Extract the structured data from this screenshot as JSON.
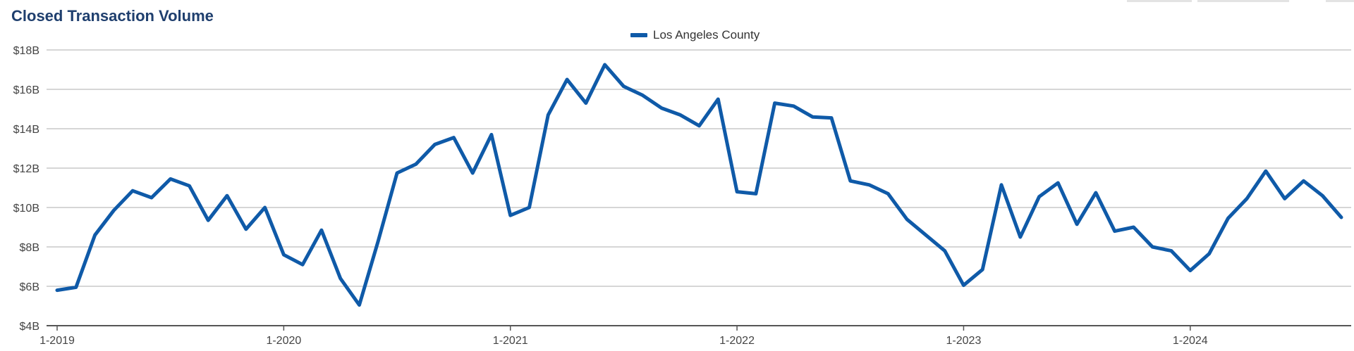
{
  "page": {
    "title": "Closed Transaction Volume"
  },
  "colors": {
    "series": "#0f5aa8",
    "grid": "#bdbdbd",
    "axis": "#555555",
    "title": "#1f3f6e"
  },
  "chart_data": {
    "type": "line",
    "title": "Closed Transaction Volume",
    "xlabel": "",
    "ylabel": "",
    "legend_position": "top-center",
    "grid": true,
    "ylim": [
      4,
      18
    ],
    "y_ticks": [
      4,
      6,
      8,
      10,
      12,
      14,
      16,
      18
    ],
    "y_tick_labels": [
      "$4B",
      "$6B",
      "$8B",
      "$10B",
      "$12B",
      "$14B",
      "$16B",
      "$18B"
    ],
    "x_tick_labels": [
      "1-2019",
      "1-2020",
      "1-2021",
      "1-2022",
      "1-2023",
      "1-2024"
    ],
    "x_tick_indices": [
      0,
      12,
      24,
      36,
      48,
      60
    ],
    "x_start": "2019-01",
    "series": [
      {
        "name": "Los Angeles County",
        "values": [
          5.8,
          5.95,
          8.6,
          9.85,
          10.85,
          10.5,
          11.45,
          11.1,
          9.35,
          10.6,
          8.9,
          10.0,
          7.6,
          7.1,
          8.85,
          6.4,
          5.05,
          8.3,
          11.75,
          12.2,
          13.2,
          13.55,
          11.75,
          13.7,
          9.6,
          10.0,
          14.7,
          16.5,
          15.3,
          17.25,
          16.15,
          15.7,
          15.05,
          14.7,
          14.15,
          15.5,
          10.8,
          10.7,
          15.3,
          15.15,
          14.6,
          14.55,
          11.35,
          11.15,
          10.7,
          9.4,
          8.6,
          7.8,
          6.05,
          6.85,
          11.15,
          8.5,
          10.55,
          11.25,
          9.15,
          10.75,
          8.8,
          9.0,
          8.0,
          7.8,
          6.8,
          7.65,
          9.45,
          10.45,
          11.85,
          10.45,
          11.35,
          10.6,
          9.5
        ]
      }
    ]
  }
}
